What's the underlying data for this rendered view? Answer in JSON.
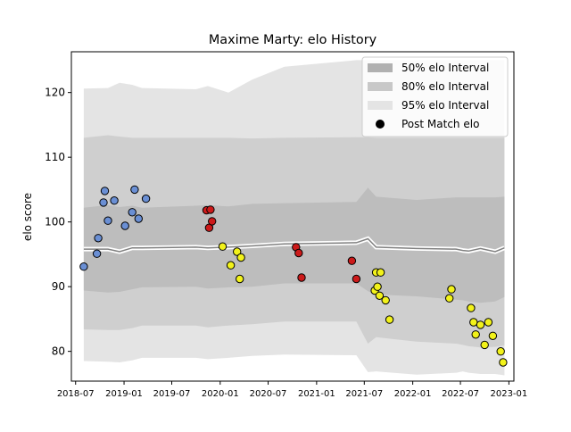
{
  "chart_data": {
    "type": "scatter",
    "title": "Maxime Marty: elo History",
    "xlabel": "",
    "ylabel": "elo score",
    "xlim": [
      "2018-06-15",
      "2023-01-20"
    ],
    "ylim": [
      75.4,
      126.3
    ],
    "x_ticks": [
      "2018-07",
      "2019-01",
      "2019-07",
      "2020-01",
      "2020-07",
      "2021-01",
      "2021-07",
      "2022-01",
      "2022-07",
      "2023-01"
    ],
    "y_ticks": [
      80,
      90,
      100,
      110,
      120
    ],
    "legend": {
      "placement": "top-right",
      "entries": [
        {
          "label": "50% elo Interval",
          "color": "#b0b0b0"
        },
        {
          "label": "80% elo Interval",
          "color": "#c8c8c8"
        },
        {
          "label": "95% elo Interval",
          "color": "#e4e4e4"
        },
        {
          "label": "Post Match elo",
          "color": "#000000"
        }
      ]
    },
    "interval_dates": [
      "2018-08-01",
      "2018-11-01",
      "2018-12-15",
      "2019-02-01",
      "2019-03-10",
      "2019-10-01",
      "2019-11-15",
      "2020-02-01",
      "2020-05-01",
      "2020-09-01",
      "2021-06-01",
      "2021-07-15",
      "2021-08-15",
      "2022-01-15",
      "2022-06-15",
      "2022-07-10",
      "2022-08-01",
      "2022-09-15",
      "2022-11-10",
      "2022-12-15"
    ],
    "median": [
      95.8,
      95.8,
      95.4,
      96.0,
      96.0,
      96.1,
      96.0,
      96.1,
      96.3,
      96.6,
      96.8,
      97.4,
      96.1,
      95.9,
      95.8,
      95.6,
      95.5,
      95.9,
      95.4,
      96.0
    ],
    "interval_50": {
      "lower": [
        89.4,
        89.1,
        89.2,
        89.6,
        89.9,
        90.0,
        89.7,
        89.9,
        90.0,
        90.5,
        90.5,
        89.3,
        88.8,
        88.5,
        88.0,
        87.9,
        87.7,
        87.5,
        87.7,
        88.4
      ],
      "upper": [
        102.2,
        102.6,
        102.3,
        102.5,
        102.2,
        102.5,
        102.6,
        102.4,
        102.8,
        102.9,
        103.1,
        105.3,
        103.9,
        103.4,
        103.8,
        103.8,
        103.8,
        103.8,
        103.8,
        103.9
      ]
    },
    "interval_80": {
      "lower": [
        83.4,
        83.3,
        83.3,
        83.6,
        84.0,
        84.0,
        83.7,
        84.0,
        84.2,
        84.6,
        84.6,
        81.2,
        82.2,
        81.5,
        81.2,
        81.0,
        80.8,
        80.6,
        80.7,
        80.9
      ],
      "upper": [
        113.0,
        113.4,
        113.2,
        113.0,
        113.0,
        113.0,
        113.0,
        113.0,
        112.9,
        113.0,
        113.1,
        113.1,
        113.0,
        113.0,
        113.0,
        113.0,
        113.0,
        113.0,
        113.0,
        113.0
      ]
    },
    "interval_95": {
      "lower": [
        78.5,
        78.4,
        78.3,
        78.6,
        79.0,
        79.0,
        78.8,
        79.0,
        79.3,
        79.5,
        79.4,
        76.8,
        76.9,
        76.4,
        76.7,
        76.9,
        76.7,
        76.5,
        76.5,
        76.3
      ],
      "upper": [
        120.6,
        120.7,
        121.5,
        121.2,
        120.7,
        120.5,
        121.0,
        120.0,
        122.0,
        124.0,
        125.0,
        125.0,
        125.0,
        125.0,
        125.0,
        125.0,
        125.0,
        125.0,
        125.0,
        125.0
      ]
    },
    "series": [
      {
        "color": "#6a8fd4",
        "points": [
          [
            "2018-08-01",
            93.1
          ],
          [
            "2018-09-20",
            95.1
          ],
          [
            "2018-09-25",
            97.5
          ],
          [
            "2018-10-15",
            103.0
          ],
          [
            "2018-10-20",
            104.8
          ],
          [
            "2018-11-01",
            100.2
          ],
          [
            "2018-11-25",
            103.3
          ],
          [
            "2019-01-05",
            99.4
          ],
          [
            "2019-02-01",
            101.5
          ],
          [
            "2019-02-10",
            105.0
          ],
          [
            "2019-02-25",
            100.5
          ],
          [
            "2019-03-25",
            103.6
          ]
        ]
      },
      {
        "color": "#cc1a1a",
        "points": [
          [
            "2019-11-10",
            101.8
          ],
          [
            "2019-11-20",
            99.1
          ],
          [
            "2019-11-25",
            101.9
          ],
          [
            "2019-12-01",
            100.1
          ],
          [
            "2020-10-15",
            96.1
          ],
          [
            "2020-10-25",
            95.2
          ],
          [
            "2020-11-05",
            91.4
          ],
          [
            "2021-05-15",
            94.0
          ],
          [
            "2021-06-01",
            91.2
          ]
        ]
      },
      {
        "color": "#f2f21a",
        "points": [
          [
            "2020-01-10",
            96.2
          ],
          [
            "2020-02-10",
            93.3
          ],
          [
            "2020-03-05",
            95.4
          ],
          [
            "2020-03-15",
            91.2
          ],
          [
            "2020-03-20",
            94.5
          ],
          [
            "2021-08-10",
            89.4
          ],
          [
            "2021-08-15",
            92.2
          ],
          [
            "2021-08-20",
            90.0
          ],
          [
            "2021-08-28",
            88.6
          ],
          [
            "2021-09-01",
            92.2
          ],
          [
            "2021-09-20",
            87.9
          ],
          [
            "2021-10-05",
            84.9
          ],
          [
            "2022-05-20",
            88.2
          ],
          [
            "2022-05-28",
            89.6
          ],
          [
            "2022-08-10",
            86.7
          ],
          [
            "2022-08-20",
            84.5
          ],
          [
            "2022-08-28",
            82.6
          ],
          [
            "2022-09-15",
            84.1
          ],
          [
            "2022-10-01",
            81.0
          ],
          [
            "2022-10-15",
            84.5
          ],
          [
            "2022-11-01",
            82.4
          ],
          [
            "2022-12-01",
            80.0
          ],
          [
            "2022-12-10",
            78.3
          ]
        ]
      }
    ]
  }
}
